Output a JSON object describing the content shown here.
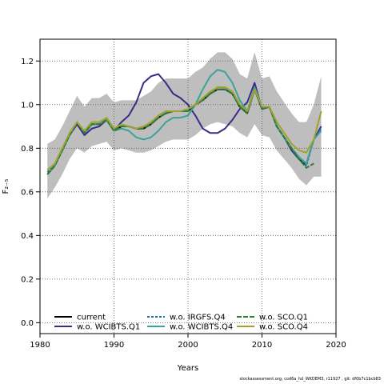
{
  "chart_data": {
    "type": "line",
    "title": "",
    "xlabel": "Years",
    "ylabel": "F₂₋₅",
    "xlim": [
      1980,
      2020
    ],
    "ylim": [
      -0.05,
      1.3
    ],
    "x_ticks": [
      1980,
      1990,
      2000,
      2010,
      2020
    ],
    "y_ticks": [
      0.0,
      0.2,
      0.4,
      0.6,
      0.8,
      1.0,
      1.2
    ],
    "grid": true,
    "legend_position": "bottom-left",
    "confidence_band": {
      "years": [
        1981,
        1982,
        1983,
        1984,
        1985,
        1986,
        1987,
        1988,
        1989,
        1990,
        1991,
        1992,
        1993,
        1994,
        1995,
        1996,
        1997,
        1998,
        1999,
        2000,
        2001,
        2002,
        2003,
        2004,
        2005,
        2006,
        2007,
        2008,
        2009,
        2010,
        2011,
        2012,
        2013,
        2014,
        2015,
        2016,
        2017,
        2018
      ],
      "upper": [
        0.82,
        0.84,
        0.9,
        0.97,
        1.04,
        0.99,
        1.03,
        1.03,
        1.05,
        1.01,
        1.02,
        1.02,
        1.02,
        1.04,
        1.06,
        1.1,
        1.12,
        1.12,
        1.12,
        1.12,
        1.15,
        1.17,
        1.21,
        1.24,
        1.24,
        1.21,
        1.14,
        1.12,
        1.24,
        1.12,
        1.13,
        1.06,
        1.01,
        0.96,
        0.92,
        0.92,
        1.0,
        1.13
      ],
      "lower": [
        0.57,
        0.62,
        0.68,
        0.75,
        0.8,
        0.78,
        0.81,
        0.82,
        0.83,
        0.79,
        0.8,
        0.79,
        0.78,
        0.78,
        0.79,
        0.81,
        0.83,
        0.84,
        0.84,
        0.84,
        0.86,
        0.89,
        0.91,
        0.92,
        0.91,
        0.9,
        0.87,
        0.85,
        0.91,
        0.86,
        0.85,
        0.79,
        0.75,
        0.71,
        0.66,
        0.63,
        0.67,
        0.67
      ]
    },
    "years": [
      1981,
      1982,
      1983,
      1984,
      1985,
      1986,
      1987,
      1988,
      1989,
      1990,
      1991,
      1992,
      1993,
      1994,
      1995,
      1996,
      1997,
      1998,
      1999,
      2000,
      2001,
      2002,
      2003,
      2004,
      2005,
      2006,
      2007,
      2008,
      2009,
      2010,
      2011,
      2012,
      2013,
      2014,
      2015,
      2016,
      2017,
      2018
    ],
    "series": [
      {
        "name": "current",
        "color": "#000000",
        "dash": "",
        "values": [
          0.68,
          0.72,
          0.79,
          0.86,
          0.92,
          0.87,
          0.91,
          0.91,
          0.93,
          0.88,
          0.9,
          0.9,
          0.89,
          0.89,
          0.91,
          0.94,
          0.96,
          0.97,
          0.97,
          0.97,
          1.0,
          1.02,
          1.05,
          1.07,
          1.07,
          1.05,
          0.99,
          0.96,
          1.07,
          0.98,
          0.99,
          0.9,
          0.85,
          0.8,
          0.75,
          0.72,
          null,
          0.89
        ]
      },
      {
        "name": "w.o. WCIBTS.Q1",
        "color": "#3a2b86",
        "dash": "",
        "values": [
          0.68,
          0.72,
          0.79,
          0.86,
          0.91,
          0.86,
          0.89,
          0.9,
          0.93,
          0.88,
          0.92,
          0.95,
          1.01,
          1.1,
          1.13,
          1.14,
          1.1,
          1.05,
          1.03,
          1.0,
          0.95,
          0.89,
          0.87,
          0.87,
          0.89,
          0.93,
          0.98,
          1.01,
          1.1,
          0.98,
          0.99,
          0.9,
          0.85,
          0.79,
          0.75,
          0.73,
          0.84,
          0.9
        ]
      },
      {
        "name": "w.o. IRGFS.Q4",
        "color": "#1a6fa8",
        "dash": "3,2",
        "values": [
          0.69,
          0.72,
          0.79,
          0.86,
          0.92,
          0.87,
          0.91,
          0.91,
          0.93,
          0.88,
          0.9,
          0.9,
          0.89,
          0.9,
          0.91,
          0.94,
          0.96,
          0.97,
          0.97,
          0.97,
          1.0,
          1.02,
          1.05,
          1.07,
          1.07,
          1.05,
          0.99,
          0.96,
          1.07,
          0.98,
          0.99,
          0.9,
          0.85,
          0.8,
          0.76,
          0.72,
          0.84,
          0.89
        ]
      },
      {
        "name": "w.o. WCIBTS.Q4",
        "color": "#3aa39a",
        "dash": "",
        "values": [
          0.68,
          0.72,
          0.79,
          0.86,
          0.92,
          0.87,
          0.91,
          0.91,
          0.93,
          0.88,
          0.89,
          0.88,
          0.85,
          0.84,
          0.85,
          0.88,
          0.92,
          0.94,
          0.94,
          0.95,
          1.0,
          1.07,
          1.13,
          1.16,
          1.15,
          1.1,
          1.02,
          0.97,
          1.08,
          0.99,
          0.99,
          0.9,
          0.85,
          0.8,
          0.76,
          0.73,
          0.84,
          0.88
        ]
      },
      {
        "name": "w.o. SCO.Q1",
        "color": "#2e7d2e",
        "dash": "6,2",
        "values": [
          0.68,
          0.72,
          0.79,
          0.86,
          0.92,
          0.87,
          0.91,
          0.91,
          0.93,
          0.88,
          0.9,
          0.9,
          0.89,
          0.89,
          0.91,
          0.94,
          0.96,
          0.97,
          0.97,
          0.97,
          1.0,
          1.02,
          1.05,
          1.07,
          1.07,
          1.05,
          0.99,
          0.96,
          1.07,
          0.98,
          0.99,
          0.9,
          0.85,
          0.8,
          0.75,
          0.71,
          0.73,
          null
        ]
      },
      {
        "name": "w.o. SCO.Q4",
        "color": "#a3a12e",
        "dash": "",
        "values": [
          0.7,
          0.73,
          0.8,
          0.87,
          0.92,
          0.88,
          0.92,
          0.92,
          0.94,
          0.89,
          0.91,
          0.9,
          0.89,
          0.9,
          0.92,
          0.95,
          0.97,
          0.97,
          0.97,
          0.98,
          1.0,
          1.03,
          1.06,
          1.08,
          1.08,
          1.06,
          1.0,
          0.97,
          1.07,
          0.99,
          0.99,
          0.92,
          0.87,
          0.82,
          0.79,
          0.78,
          0.84,
          0.97
        ]
      }
    ]
  },
  "legend": [
    {
      "name": "current",
      "color": "#000000",
      "dash": ""
    },
    {
      "name": "w.o. WCIBTS.Q1",
      "color": "#3a2b86",
      "dash": ""
    },
    {
      "name": "w.o. IRGFS.Q4",
      "color": "#1a6fa8",
      "dash": "3,2"
    },
    {
      "name": "w.o. WCIBTS.Q4",
      "color": "#3aa39a",
      "dash": ""
    },
    {
      "name": "w.o. SCO.Q1",
      "color": "#2e7d2e",
      "dash": "6,2"
    },
    {
      "name": "w.o. SCO.Q4",
      "color": "#a3a12e",
      "dash": ""
    }
  ],
  "band_color": "#bebebe",
  "footer": "stockassessment.org, cod6a_hd_WKDEM3, r11927 , git: df0b7c1bcb83"
}
